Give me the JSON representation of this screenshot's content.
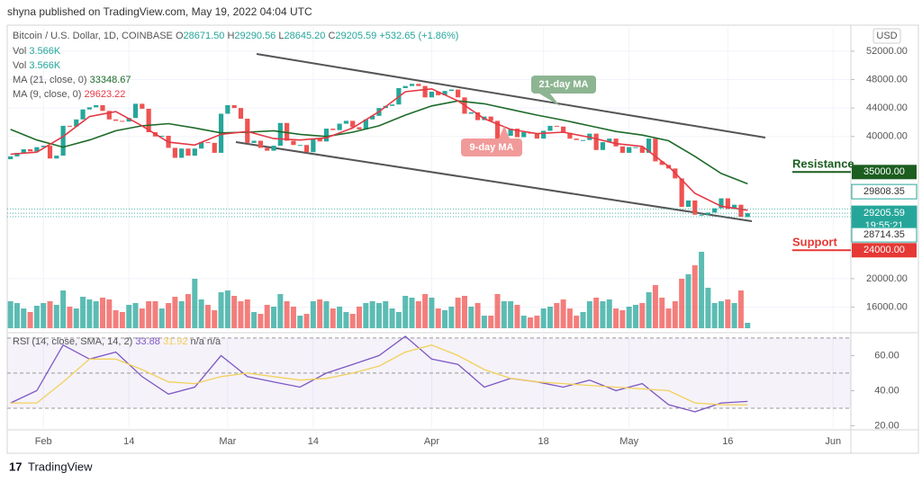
{
  "chart_data": {
    "type": "candlestick",
    "header": "shyna published on TradingView.com, May 19, 2022 04:04 UTC",
    "symbol": "Bitcoin / U.S. Dollar, 1D, COINBASE",
    "ohlc": [
      {
        "label": "O",
        "value": "28671.50"
      },
      {
        "label": "H",
        "value": "29290.56"
      },
      {
        "label": "L",
        "value": "28645.20"
      },
      {
        "label": "C",
        "value": "29205.59"
      }
    ],
    "change": "+532.65 (+1.86%)",
    "volume_legend": [
      {
        "label": "Vol",
        "value": "3.566K"
      },
      {
        "label": "Vol",
        "value": "3.566K"
      }
    ],
    "currency": "USD",
    "footer": "TradingView",
    "up_color": "#26a69a",
    "down_color": "#ef5350",
    "grid": true,
    "xlim": [
      -0.5,
      127.7
    ],
    "xticks": [
      {
        "value": 5,
        "label": "Feb"
      },
      {
        "value": 18,
        "label": "14"
      },
      {
        "value": 33,
        "label": "Mar"
      },
      {
        "value": 46,
        "label": "14"
      },
      {
        "value": 64,
        "label": "Apr"
      },
      {
        "value": 81,
        "label": "18"
      },
      {
        "value": 94,
        "label": "May"
      },
      {
        "value": 109,
        "label": "16"
      },
      {
        "value": 125,
        "label": "Jun"
      }
    ],
    "ylim": [
      12400,
      55400
    ],
    "yticks": [
      {
        "value": 16000,
        "label": "16000.00"
      },
      {
        "value": 20000,
        "label": "20000.00"
      },
      {
        "value": 40000,
        "label": "40000.00"
      },
      {
        "value": 44000,
        "label": "44000.00"
      },
      {
        "value": 48000,
        "label": "48000.00"
      },
      {
        "value": 52000,
        "label": "52000.00"
      }
    ],
    "open": [
      36800,
      37200,
      37700,
      38200,
      37900,
      38500,
      38700,
      36900,
      37300,
      41500,
      41400,
      42400,
      43800,
      44100,
      44400,
      43600,
      42400,
      42200,
      42100,
      42600,
      44600,
      43900,
      40600,
      40000,
      40100,
      38400,
      37000,
      38300,
      37300,
      38300,
      39200,
      39100,
      37700,
      43200,
      44400,
      44000,
      42500,
      39100,
      39400,
      38400,
      38000,
      38700,
      41900,
      39400,
      38800,
      38800,
      37800,
      39700,
      39300,
      41100,
      40900,
      41800,
      42200,
      41300,
      41000,
      42400,
      42900,
      44000,
      44300,
      44500,
      46800,
      47100,
      47400,
      47100,
      45500,
      46300,
      45800,
      46400,
      46600,
      45500,
      43200,
      43400,
      42300,
      42800,
      42200,
      39500,
      40100,
      41100,
      39900,
      40600,
      40400,
      39700,
      40800,
      41500,
      41400,
      40500,
      39700,
      39500,
      39500,
      40400,
      38100,
      39200,
      39700,
      38600,
      37700,
      38500,
      38500,
      37700,
      39700,
      36500,
      36000,
      35500,
      34100,
      30100,
      31000,
      29000,
      29000,
      29300,
      29900,
      31300,
      29800,
      30400,
      28671.5
    ],
    "close": [
      37200,
      37700,
      38200,
      37900,
      38500,
      38700,
      36900,
      37300,
      41500,
      41400,
      42400,
      43800,
      44100,
      44400,
      43600,
      42400,
      42200,
      42100,
      42600,
      44600,
      43900,
      40600,
      40000,
      40100,
      38400,
      37000,
      38300,
      37300,
      38300,
      39200,
      39100,
      37700,
      43200,
      44400,
      44000,
      42500,
      39100,
      39400,
      38400,
      38000,
      38700,
      41900,
      39400,
      38800,
      38800,
      37800,
      39700,
      39300,
      41100,
      40900,
      41800,
      42200,
      41300,
      41000,
      42400,
      42900,
      44000,
      44300,
      44500,
      46800,
      47100,
      47400,
      47100,
      45500,
      46300,
      45800,
      46400,
      46600,
      45500,
      43200,
      43400,
      42300,
      42800,
      42200,
      39500,
      40100,
      41100,
      39900,
      40600,
      40400,
      39700,
      40800,
      41500,
      41400,
      40500,
      39700,
      39500,
      39500,
      40400,
      38100,
      39200,
      39700,
      38600,
      37700,
      38500,
      38500,
      37700,
      39700,
      36500,
      36000,
      35500,
      34100,
      30100,
      31000,
      29000,
      29000,
      29300,
      29900,
      31300,
      29800,
      30400,
      28700,
      29205.59
    ],
    "volume": [
      30,
      28,
      22,
      18,
      25,
      28,
      30,
      26,
      42,
      24,
      22,
      35,
      32,
      30,
      34,
      32,
      20,
      18,
      26,
      28,
      22,
      30,
      30,
      22,
      28,
      35,
      30,
      38,
      55,
      32,
      26,
      20,
      40,
      42,
      36,
      30,
      32,
      18,
      16,
      26,
      24,
      38,
      30,
      24,
      14,
      16,
      30,
      32,
      30,
      22,
      24,
      18,
      16,
      24,
      28,
      30,
      28,
      30,
      22,
      18,
      36,
      34,
      30,
      38,
      34,
      22,
      20,
      24,
      34,
      36,
      24,
      28,
      14,
      14,
      38,
      30,
      30,
      26,
      14,
      12,
      14,
      22,
      24,
      28,
      32,
      22,
      14,
      18,
      30,
      34,
      30,
      32,
      22,
      20,
      24,
      26,
      28,
      40,
      48,
      34,
      22,
      30,
      55,
      60,
      70,
      85,
      45,
      28,
      30,
      32,
      28,
      42,
      6
    ],
    "volume_ylim": [
      0,
      100
    ],
    "line_x": [
      0,
      4,
      8,
      12,
      16,
      20,
      24,
      28,
      32,
      36,
      40,
      44,
      48,
      52,
      56,
      60,
      64,
      68,
      72,
      76,
      80,
      84,
      88,
      92,
      96,
      100,
      104,
      108,
      112
    ],
    "series": [
      {
        "name": "MA (21, close, 0)",
        "color": "#1e6b2a",
        "values": [
          41000,
          39500,
          38500,
          39500,
          40800,
          41500,
          41800,
          41200,
          40500,
          40600,
          40800,
          40300,
          40000,
          40600,
          41500,
          43000,
          44300,
          45000,
          44600,
          43800,
          43000,
          42300,
          41500,
          40700,
          40200,
          39400,
          37200,
          34800,
          33348.67
        ]
      },
      {
        "name": "MA (9, close, 0)",
        "color": "#e53945",
        "values": [
          37500,
          37800,
          40000,
          42800,
          43500,
          41500,
          39200,
          38800,
          40300,
          40700,
          39700,
          39500,
          39800,
          41200,
          43500,
          46300,
          46700,
          45000,
          42500,
          41000,
          40400,
          40600,
          39900,
          39000,
          38600,
          35800,
          32000,
          30200,
          29623.22
        ]
      }
    ],
    "price_badges": [
      {
        "value": 29808.35,
        "color": "#ffffff"
      },
      {
        "value": 29205.59,
        "color": "#26a69a",
        "countdown": "19:55:21"
      },
      {
        "value": 28714.35,
        "color": "#ffffff"
      }
    ],
    "levels": [
      {
        "name": "Resistance",
        "value": 35000,
        "label": "35000.00",
        "color": "#1b5e20"
      },
      {
        "name": "Support",
        "value": 24000,
        "label": "24000.00",
        "color": "#e53935"
      }
    ],
    "annotations": [
      {
        "text": "21-day MA",
        "color": "#8db592"
      },
      {
        "text": "9-day MA",
        "color": "#f19a9a"
      }
    ],
    "rsi": {
      "name": "RSI (14, close, SMA, 14, 2)",
      "na": "n/a n/a",
      "ylim": [
        18.7,
        72
      ],
      "yticks": [
        {
          "value": 20,
          "label": "20.00"
        },
        {
          "value": 40,
          "label": "40.00"
        },
        {
          "value": 60,
          "label": "60.00"
        }
      ],
      "band": [
        30,
        70
      ],
      "mid": 50,
      "series": [
        {
          "color": "#7e57c2",
          "values": [
            33,
            40,
            66,
            58,
            62,
            48,
            38,
            42,
            60,
            48,
            45,
            42,
            50,
            55,
            60,
            71,
            58,
            55,
            42,
            47,
            45,
            42,
            46,
            40,
            44,
            32,
            28,
            33,
            33.88
          ]
        },
        {
          "color": "#f2d15a",
          "values": [
            33,
            33,
            45,
            58,
            58,
            52,
            45,
            44,
            48,
            50,
            48,
            46,
            47,
            50,
            54,
            62,
            66,
            60,
            52,
            47,
            45,
            44,
            43,
            42,
            41,
            40,
            33,
            32,
            31.92
          ]
        }
      ]
    }
  }
}
